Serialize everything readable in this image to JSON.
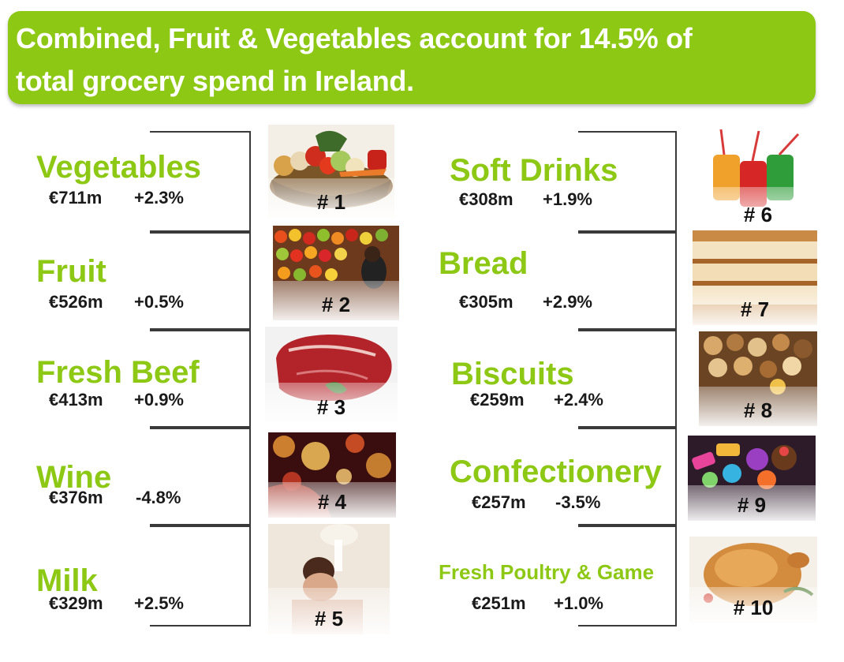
{
  "headline": {
    "line1": "Combined,  Fruit & Vegetables account for 14.5% of",
    "line2": "total grocery spend in Ireland."
  },
  "left_items": [
    {
      "name": "Vegetables",
      "value": "€711m",
      "change": "+2.3%",
      "rank": "# 1",
      "image": "vegetable-basket"
    },
    {
      "name": "Fruit",
      "value": "€526m",
      "change": "+0.5%",
      "rank": "# 2",
      "image": "fruit-market-stall"
    },
    {
      "name": "Fresh Beef",
      "value": "€413m",
      "change": "+0.9%",
      "rank": "# 3",
      "image": "raw-beef-steak"
    },
    {
      "name": "Wine",
      "value": "€376m",
      "change": "-4.8%",
      "rank": "# 4",
      "image": "wine-glass-bokeh"
    },
    {
      "name": "Milk",
      "value": "€329m",
      "change": "+2.5%",
      "rank": "# 5",
      "image": "milk-bath"
    }
  ],
  "right_items": [
    {
      "name": "Soft Drinks",
      "value": "€308m",
      "change": "+1.9%",
      "rank": "# 6",
      "image": "soda-cans"
    },
    {
      "name": "Bread",
      "value": "€305m",
      "change": "+2.9%",
      "rank": "# 7",
      "image": "bread-slices"
    },
    {
      "name": "Biscuits",
      "value": "€259m",
      "change": "+2.4%",
      "rank": "# 8",
      "image": "assorted-biscuits"
    },
    {
      "name": "Confectionery",
      "value": "€257m",
      "change": "-3.5%",
      "rank": "# 9",
      "image": "sweets-candy"
    },
    {
      "name": "Fresh Poultry & Game",
      "value": "€251m",
      "change": "+1.0%",
      "rank": "# 10",
      "image": "roast-chicken"
    }
  ],
  "colors": {
    "accent": "#8dc814",
    "text": "#1a1a1a",
    "bracket": "#3a3a3a"
  }
}
